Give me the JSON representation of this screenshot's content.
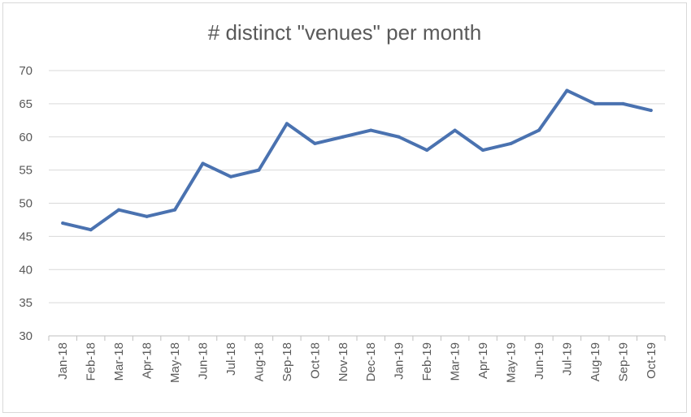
{
  "chart_data": {
    "type": "line",
    "title": "# distinct \"venues\" per month",
    "xlabel": "",
    "ylabel": "",
    "categories": [
      "Jan-18",
      "Feb-18",
      "Mar-18",
      "Apr-18",
      "May-18",
      "Jun-18",
      "Jul-18",
      "Aug-18",
      "Sep-18",
      "Oct-18",
      "Nov-18",
      "Dec-18",
      "Jan-19",
      "Feb-19",
      "Mar-19",
      "Apr-19",
      "May-19",
      "Jun-19",
      "Jul-19",
      "Aug-19",
      "Sep-19",
      "Oct-19"
    ],
    "series": [
      {
        "values": [
          47,
          46,
          49,
          48,
          49,
          56,
          54,
          55,
          62,
          59,
          60,
          61,
          60,
          58,
          61,
          58,
          59,
          61,
          67,
          65,
          65,
          64
        ],
        "color": "#4a72b0"
      }
    ],
    "ylim": [
      30,
      70
    ],
    "yticks": [
      30,
      35,
      40,
      45,
      50,
      55,
      60,
      65,
      70
    ],
    "grid": true,
    "legend": "none"
  }
}
